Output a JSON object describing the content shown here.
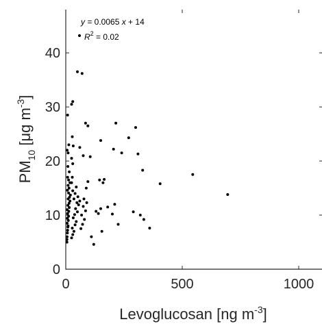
{
  "chart_data": {
    "type": "scatter",
    "title": "",
    "xlabel": {
      "main": "Levoglucosan [ng m",
      "sup": "-3",
      "close": "]"
    },
    "ylabel": {
      "main": "PM",
      "sub": "10",
      "rest": " [μg m",
      "sup": "-3",
      "close": "]"
    },
    "xlim": [
      0,
      1100
    ],
    "ylim": [
      0,
      48
    ],
    "xticks": [
      0,
      500,
      1000
    ],
    "yticks": [
      0,
      10,
      20,
      30,
      40
    ],
    "xtick_labels": [
      "0",
      "500",
      "1000"
    ],
    "ytick_labels": [
      "0",
      "10",
      "20",
      "30",
      "40"
    ],
    "grid": false,
    "marker_color": "#000000",
    "annotations": {
      "equation": "y = 0.0065 x + 14",
      "r2_prefix": "R",
      "r2_sup": "2",
      "r2_value": " = 0.02"
    },
    "points": [
      [
        5,
        5.0
      ],
      [
        5,
        5.5
      ],
      [
        6,
        6.0
      ],
      [
        7,
        6.7
      ],
      [
        8,
        7.2
      ],
      [
        9,
        7.8
      ],
      [
        10,
        8.0
      ],
      [
        6,
        8.5
      ],
      [
        11,
        9.0
      ],
      [
        7,
        9.4
      ],
      [
        12,
        9.8
      ],
      [
        8,
        10.3
      ],
      [
        13,
        10.7
      ],
      [
        6,
        11.0
      ],
      [
        15,
        11.4
      ],
      [
        9,
        11.8
      ],
      [
        14,
        12.2
      ],
      [
        18,
        12.6
      ],
      [
        10,
        13.0
      ],
      [
        16,
        13.3
      ],
      [
        20,
        13.7
      ],
      [
        12,
        14.1
      ],
      [
        7,
        14.6
      ],
      [
        14,
        15.0
      ],
      [
        10,
        15.5
      ],
      [
        18,
        16.0
      ],
      [
        12,
        16.5
      ],
      [
        8,
        17.0
      ],
      [
        15,
        18.0
      ],
      [
        9,
        19.0
      ],
      [
        10,
        21.5
      ],
      [
        6,
        22.0
      ],
      [
        13,
        23.0
      ],
      [
        8,
        28.5
      ],
      [
        25,
        5.8
      ],
      [
        30,
        6.4
      ],
      [
        35,
        7.0
      ],
      [
        28,
        7.6
      ],
      [
        40,
        8.2
      ],
      [
        45,
        8.8
      ],
      [
        32,
        9.5
      ],
      [
        38,
        10.1
      ],
      [
        50,
        10.6
      ],
      [
        42,
        11.2
      ],
      [
        55,
        11.9
      ],
      [
        48,
        12.3
      ],
      [
        60,
        12.6
      ],
      [
        35,
        13.0
      ],
      [
        52,
        13.4
      ],
      [
        40,
        14.0
      ],
      [
        30,
        14.5
      ],
      [
        45,
        15.2
      ],
      [
        25,
        16.0
      ],
      [
        28,
        17.0
      ],
      [
        30,
        19.5
      ],
      [
        25,
        20.5
      ],
      [
        32,
        22.8
      ],
      [
        28,
        24.5
      ],
      [
        25,
        30.5
      ],
      [
        30,
        31.0
      ],
      [
        50,
        36.5
      ],
      [
        70,
        36.2
      ],
      [
        65,
        7.5
      ],
      [
        72,
        8.3
      ],
      [
        80,
        9.2
      ],
      [
        68,
        10.0
      ],
      [
        85,
        10.8
      ],
      [
        75,
        11.6
      ],
      [
        90,
        12.3
      ],
      [
        78,
        13.0
      ],
      [
        88,
        15.0
      ],
      [
        95,
        16.2
      ],
      [
        60,
        22.5
      ],
      [
        75,
        21.0
      ],
      [
        105,
        20.8
      ],
      [
        85,
        27.0
      ],
      [
        95,
        26.5
      ],
      [
        110,
        6.0
      ],
      [
        120,
        4.6
      ],
      [
        130,
        10.7
      ],
      [
        140,
        10.3
      ],
      [
        150,
        11.2
      ],
      [
        155,
        7.0
      ],
      [
        145,
        16.5
      ],
      [
        160,
        16.0
      ],
      [
        165,
        16.6
      ],
      [
        150,
        23.8
      ],
      [
        180,
        11.5
      ],
      [
        200,
        10.2
      ],
      [
        210,
        12.0
      ],
      [
        225,
        8.3
      ],
      [
        205,
        22.2
      ],
      [
        215,
        27.0
      ],
      [
        240,
        21.5
      ],
      [
        270,
        24.3
      ],
      [
        290,
        10.6
      ],
      [
        300,
        26.2
      ],
      [
        310,
        21.3
      ],
      [
        320,
        10.0
      ],
      [
        335,
        9.2
      ],
      [
        330,
        18.3
      ],
      [
        360,
        7.6
      ],
      [
        405,
        15.8
      ],
      [
        545,
        17.5
      ],
      [
        695,
        13.8
      ]
    ]
  }
}
